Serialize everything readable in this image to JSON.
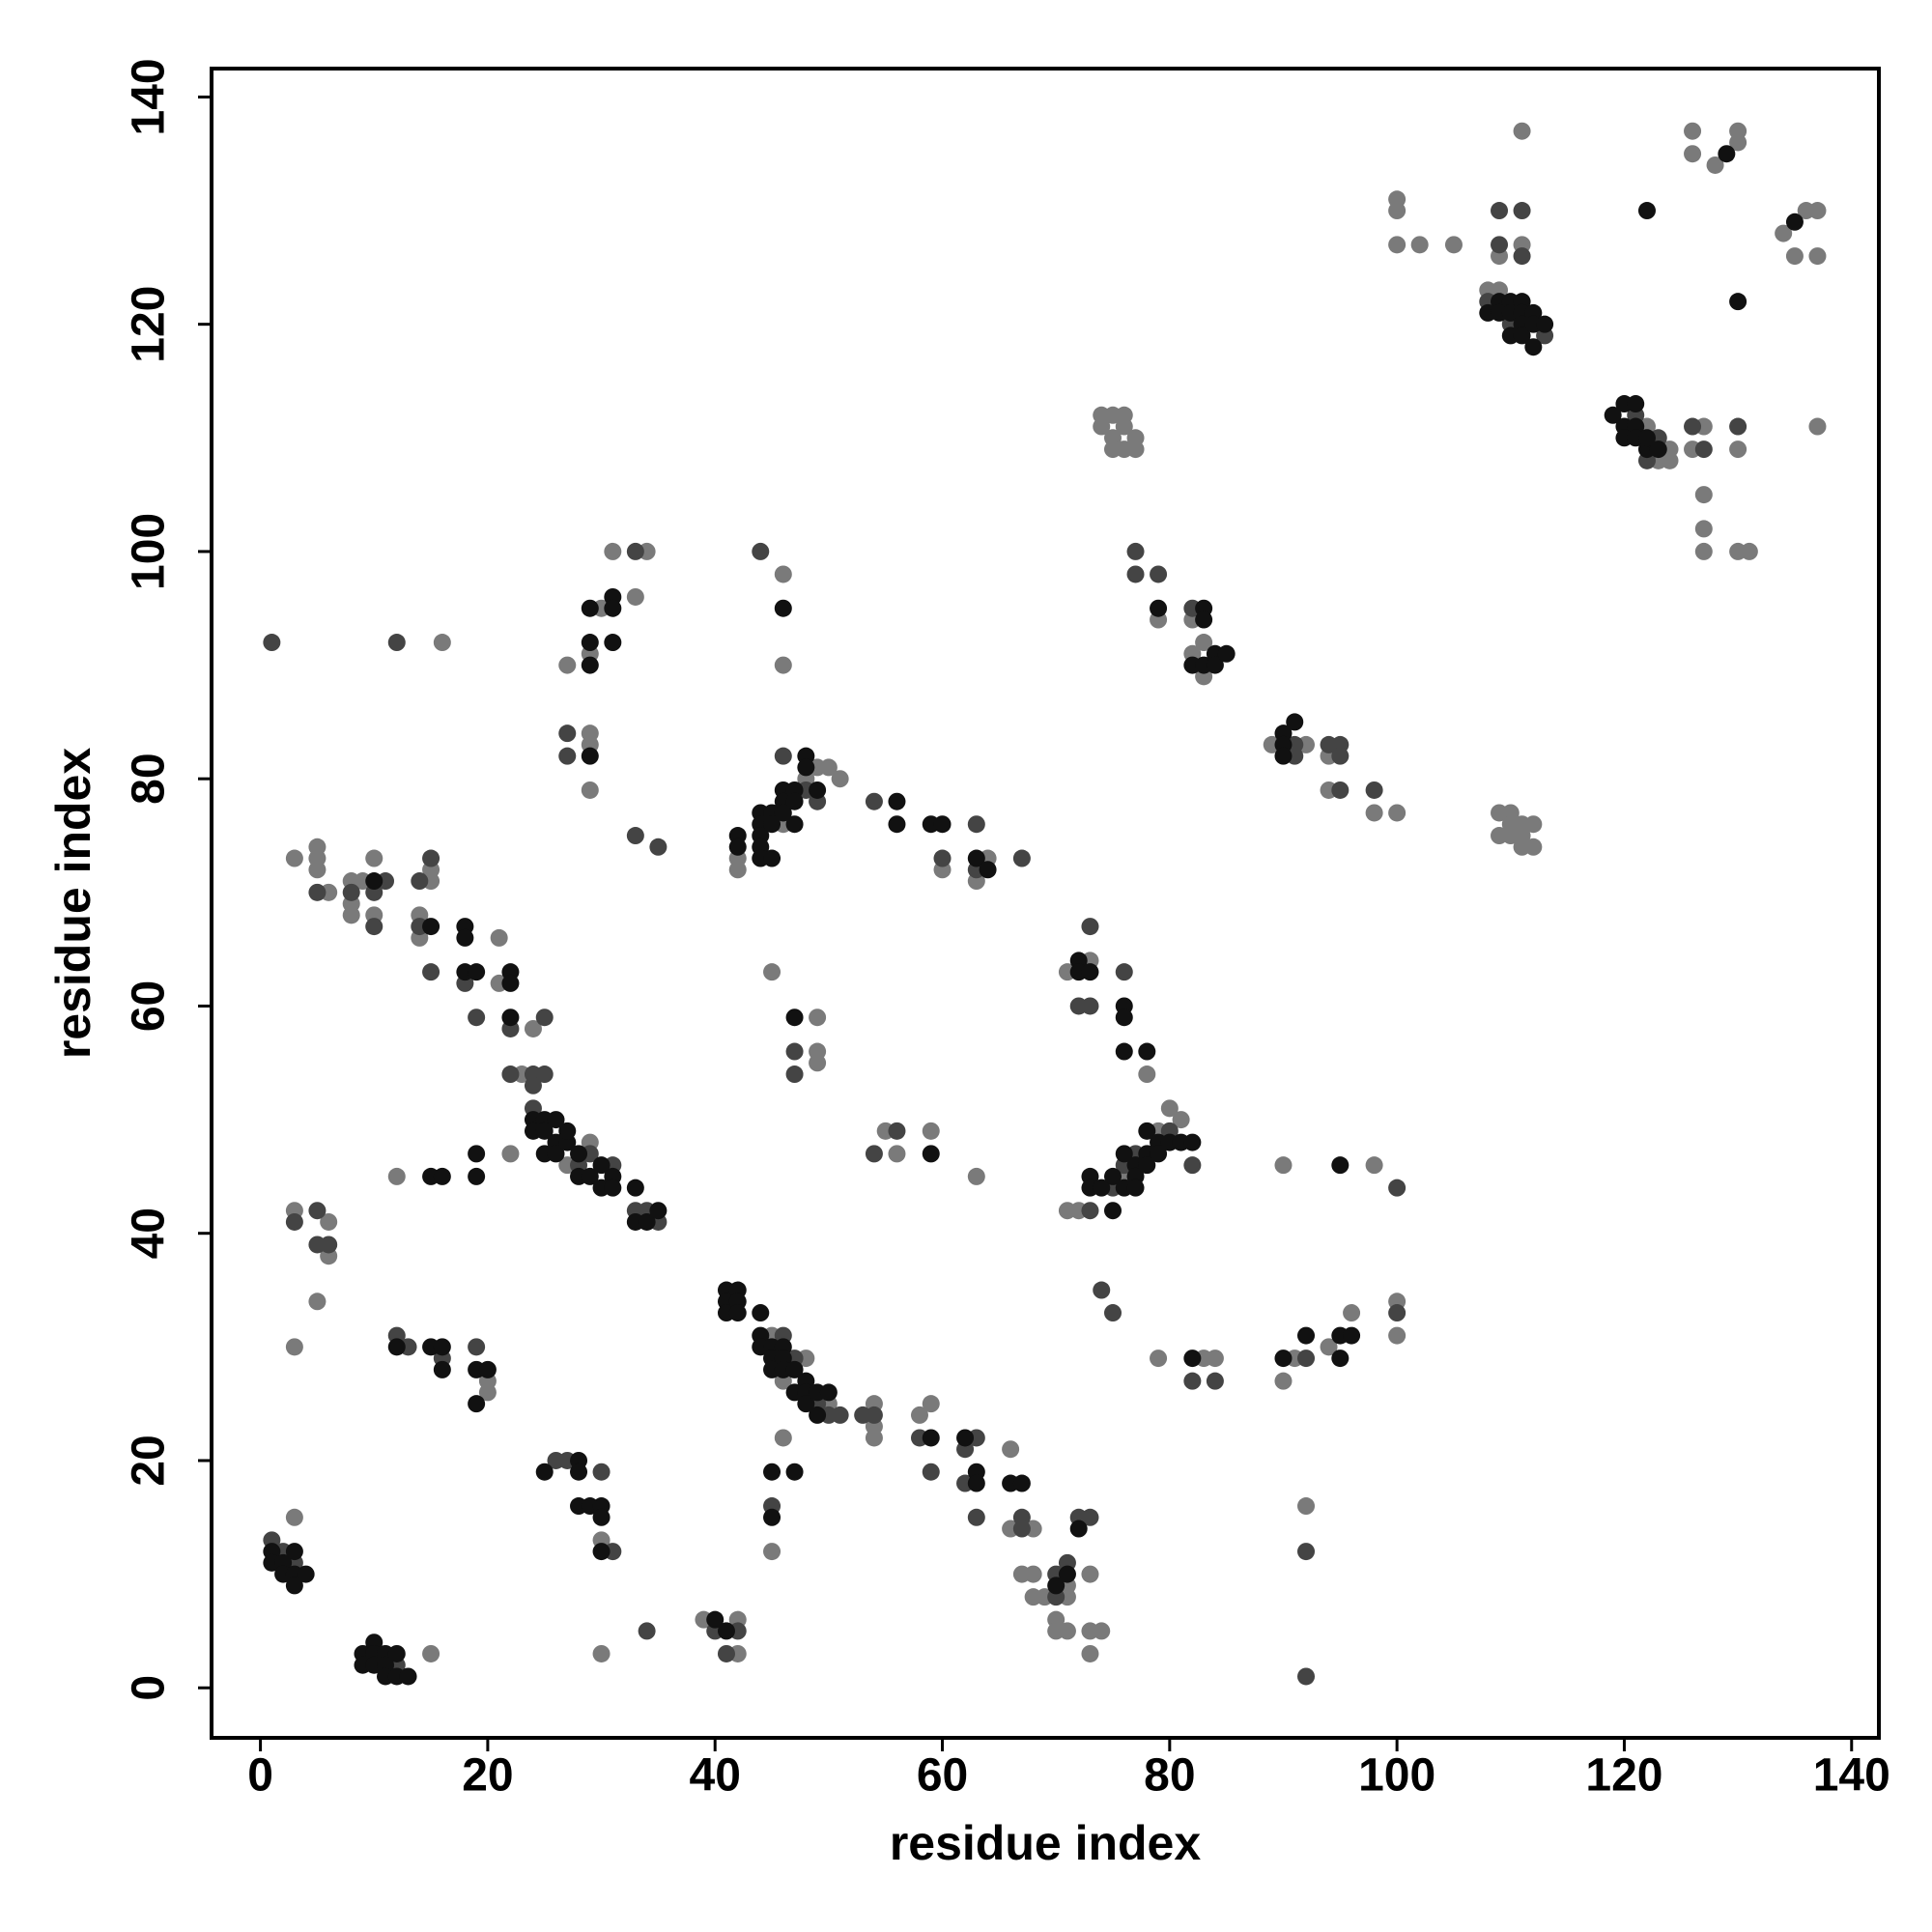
{
  "chart_data": {
    "type": "scatter",
    "x_label": "residue index",
    "y_label": "residue index",
    "xlim": [
      -4.3,
      142.4
    ],
    "ylim": [
      -4.4,
      142.5
    ],
    "xticks": [
      0,
      20,
      40,
      60,
      80,
      100,
      120,
      140
    ],
    "yticks": [
      0,
      20,
      40,
      60,
      80,
      100,
      120,
      140
    ],
    "grid": false,
    "series": [
      {
        "color": "#7a7a7a",
        "x": [
          3,
          15,
          3,
          6,
          6,
          5,
          3,
          20,
          20,
          30,
          30,
          12,
          22,
          16,
          3,
          5,
          5,
          5,
          6,
          8,
          8,
          8,
          9,
          10,
          10,
          15,
          15,
          14,
          14,
          21,
          21,
          23,
          24,
          27,
          29,
          27,
          29,
          30,
          31,
          34,
          33,
          29,
          29,
          29,
          46,
          46,
          42,
          42,
          46,
          48,
          49,
          50,
          51,
          60,
          63,
          64,
          45,
          49,
          49,
          49,
          55,
          56,
          59,
          63,
          45,
          46,
          48,
          50,
          54,
          54,
          54,
          58,
          59,
          46,
          45,
          66,
          66,
          68,
          67,
          68,
          68,
          69,
          70,
          70,
          71,
          71,
          71,
          73,
          73,
          73,
          74,
          39,
          42,
          42,
          71,
          73,
          78,
          71,
          72,
          76,
          79,
          80,
          81,
          79,
          83,
          84,
          90,
          98,
          90,
          91,
          94,
          96,
          100,
          100,
          92,
          74,
          74,
          75,
          75,
          75,
          76,
          76,
          76,
          77,
          77,
          79,
          82,
          82,
          83,
          83,
          89,
          92,
          94,
          94,
          98,
          100,
          109,
          110,
          109,
          110,
          111,
          111,
          112,
          112,
          111,
          110,
          100,
          100,
          100,
          102,
          105,
          109,
          111,
          111,
          108,
          109,
          122,
          123,
          124,
          124,
          126,
          126,
          128,
          130,
          130,
          134,
          135,
          136,
          137,
          137,
          137,
          127,
          126,
          130,
          127,
          127,
          127,
          130,
          131
        ],
        "values": [
          15,
          3,
          42,
          41,
          38,
          34,
          30,
          27,
          26,
          13,
          3,
          45,
          47,
          92,
          73,
          74,
          73,
          72,
          70,
          71,
          69,
          68,
          71,
          73,
          68,
          72,
          71,
          68,
          66,
          66,
          62,
          54,
          58,
          46,
          48,
          90,
          91,
          95,
          100,
          100,
          96,
          84,
          83,
          79,
          98,
          90,
          73,
          72,
          76,
          80,
          81,
          81,
          80,
          72,
          71,
          73,
          63,
          59,
          56,
          55,
          49,
          47,
          49,
          45,
          31,
          27,
          29,
          25,
          25,
          23,
          22,
          24,
          25,
          22,
          12,
          21,
          14,
          14,
          10,
          10,
          8,
          8,
          6,
          5,
          9,
          8,
          5,
          10,
          5,
          3,
          5,
          6,
          6,
          3,
          63,
          64,
          54,
          42,
          42,
          45,
          49,
          51,
          50,
          29,
          29,
          29,
          46,
          46,
          27,
          29,
          30,
          33,
          34,
          31,
          16,
          112,
          111,
          112,
          110,
          109,
          112,
          111,
          109,
          110,
          109,
          94,
          94,
          91,
          92,
          89,
          83,
          83,
          82,
          79,
          77,
          77,
          77,
          77,
          75,
          76,
          76,
          75,
          76,
          74,
          74,
          75,
          131,
          130,
          127,
          127,
          127,
          126,
          127,
          137,
          123,
          123,
          111,
          108,
          109,
          108,
          137,
          135,
          134,
          137,
          136,
          128,
          126,
          130,
          130,
          126,
          111,
          111,
          109,
          109,
          105,
          102,
          100,
          100,
          100
        ]
      },
      {
        "color": "#444444",
        "x": [
          1,
          2,
          3,
          12,
          3,
          5,
          5,
          6,
          12,
          13,
          16,
          19,
          26,
          27,
          30,
          31,
          1,
          12,
          5,
          8,
          10,
          10,
          11,
          14,
          15,
          14,
          15,
          18,
          19,
          22,
          22,
          24,
          24,
          25,
          25,
          24,
          28,
          29,
          31,
          33,
          34,
          35,
          33,
          27,
          27,
          33,
          35,
          44,
          46,
          48,
          49,
          54,
          60,
          63,
          63,
          67,
          47,
          47,
          54,
          56,
          46,
          47,
          49,
          50,
          51,
          53,
          54,
          58,
          59,
          45,
          62,
          63,
          62,
          63,
          67,
          67,
          70,
          70,
          71,
          72,
          73,
          40,
          41,
          42,
          34,
          72,
          73,
          73,
          76,
          73,
          75,
          76,
          77,
          80,
          82,
          74,
          75,
          82,
          84,
          100,
          92,
          100,
          92,
          92,
          77,
          77,
          79,
          82,
          91,
          91,
          94,
          95,
          95,
          95,
          98,
          109,
          109,
          111,
          111,
          108,
          110,
          113,
          121,
          122,
          123,
          126,
          127,
          130
        ],
        "values": [
          13,
          12,
          11,
          2,
          41,
          42,
          39,
          39,
          31,
          30,
          29,
          30,
          20,
          20,
          19,
          12,
          92,
          92,
          70,
          70,
          70,
          67,
          71,
          71,
          73,
          67,
          63,
          62,
          59,
          58,
          54,
          54,
          53,
          59,
          54,
          51,
          46,
          47,
          46,
          42,
          42,
          41,
          100,
          84,
          82,
          75,
          74,
          100,
          82,
          79,
          78,
          78,
          73,
          76,
          72,
          73,
          56,
          54,
          47,
          49,
          31,
          29,
          25,
          24,
          24,
          24,
          24,
          22,
          19,
          16,
          21,
          22,
          18,
          15,
          15,
          14,
          10,
          8,
          11,
          15,
          15,
          5,
          3,
          5,
          5,
          60,
          67,
          60,
          63,
          42,
          44,
          46,
          47,
          49,
          46,
          35,
          33,
          27,
          27,
          44,
          29,
          33,
          12,
          1,
          100,
          98,
          98,
          95,
          83,
          82,
          83,
          83,
          82,
          79,
          79,
          130,
          127,
          130,
          126,
          122,
          120,
          119,
          112,
          108,
          110,
          111,
          109,
          111
        ]
      },
      {
        "color": "#111111",
        "x": [
          1,
          1,
          2,
          2,
          3,
          3,
          3,
          4,
          9,
          9,
          10,
          10,
          10,
          11,
          11,
          11,
          12,
          12,
          13,
          12,
          15,
          16,
          16,
          19,
          20,
          19,
          25,
          28,
          28,
          28,
          29,
          30,
          30,
          30,
          15,
          16,
          19,
          19,
          10,
          15,
          18,
          18,
          18,
          19,
          22,
          22,
          22,
          24,
          24,
          25,
          25,
          25,
          26,
          26,
          26,
          27,
          27,
          28,
          28,
          29,
          30,
          30,
          31,
          31,
          33,
          33,
          34,
          35,
          29,
          29,
          29,
          31,
          31,
          31,
          29,
          46,
          42,
          42,
          44,
          44,
          44,
          44,
          44,
          45,
          45,
          45,
          46,
          46,
          46,
          47,
          47,
          47,
          48,
          48,
          49,
          56,
          56,
          59,
          60,
          63,
          64,
          47,
          59,
          41,
          41,
          41,
          42,
          42,
          42,
          44,
          44,
          44,
          45,
          45,
          45,
          46,
          46,
          46,
          47,
          47,
          48,
          48,
          48,
          49,
          49,
          50,
          59,
          45,
          47,
          45,
          62,
          63,
          63,
          66,
          67,
          70,
          71,
          72,
          40,
          41,
          72,
          72,
          73,
          76,
          76,
          76,
          78,
          73,
          73,
          74,
          75,
          75,
          76,
          76,
          77,
          77,
          77,
          78,
          78,
          78,
          79,
          79,
          80,
          81,
          82,
          82,
          95,
          90,
          92,
          95,
          95,
          96,
          79,
          83,
          83,
          82,
          83,
          84,
          84,
          85,
          90,
          90,
          90,
          91,
          108,
          109,
          109,
          110,
          110,
          110,
          111,
          111,
          111,
          111,
          112,
          112,
          112,
          113,
          119,
          120,
          120,
          120,
          121,
          121,
          121,
          122,
          123,
          122,
          122,
          130,
          129,
          135
        ],
        "values": [
          12,
          11,
          11,
          10,
          12,
          10,
          9,
          10,
          3,
          2,
          4,
          3,
          2,
          3,
          2,
          1,
          3,
          1,
          1,
          30,
          30,
          30,
          28,
          28,
          28,
          25,
          19,
          20,
          19,
          16,
          16,
          16,
          15,
          12,
          45,
          45,
          47,
          45,
          71,
          67,
          67,
          66,
          63,
          63,
          63,
          62,
          59,
          50,
          49,
          50,
          49,
          47,
          50,
          48,
          47,
          48,
          49,
          47,
          45,
          45,
          46,
          44,
          45,
          44,
          44,
          41,
          41,
          42,
          90,
          92,
          95,
          96,
          95,
          92,
          82,
          95,
          75,
          74,
          77,
          76,
          75,
          74,
          73,
          77,
          76,
          73,
          79,
          78,
          77,
          79,
          78,
          76,
          82,
          81,
          79,
          78,
          76,
          76,
          76,
          73,
          72,
          59,
          47,
          35,
          34,
          33,
          35,
          34,
          33,
          33,
          31,
          30,
          30,
          29,
          28,
          30,
          29,
          28,
          28,
          26,
          27,
          26,
          25,
          26,
          24,
          26,
          22,
          19,
          19,
          15,
          22,
          19,
          18,
          18,
          18,
          9,
          10,
          14,
          6,
          5,
          64,
          63,
          63,
          60,
          59,
          56,
          56,
          45,
          44,
          44,
          45,
          42,
          47,
          44,
          46,
          45,
          44,
          49,
          47,
          46,
          48,
          47,
          48,
          48,
          48,
          29,
          46,
          29,
          31,
          31,
          29,
          31,
          95,
          95,
          94,
          90,
          90,
          91,
          90,
          91,
          84,
          83,
          82,
          85,
          121,
          122,
          121,
          122,
          121,
          119,
          122,
          121,
          120,
          119,
          121,
          120,
          118,
          120,
          112,
          113,
          111,
          110,
          113,
          111,
          110,
          109,
          109,
          110,
          130,
          122,
          135,
          129
        ]
      }
    ]
  }
}
